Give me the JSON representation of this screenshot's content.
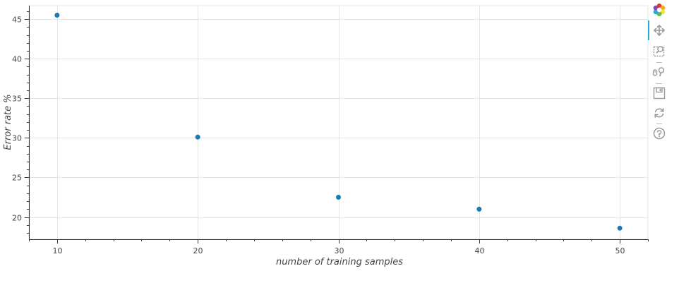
{
  "chart_data": {
    "type": "scatter",
    "title": "",
    "xlabel": "number of training samples",
    "ylabel": "Error rate %",
    "xlim": [
      8,
      52
    ],
    "ylim": [
      17.2,
      46.7
    ],
    "xticks": [
      10,
      20,
      30,
      40,
      50
    ],
    "yticks": [
      20,
      25,
      30,
      35,
      40,
      45
    ],
    "grid": true,
    "points_color": "#1f77b4",
    "x": [
      10,
      20,
      30,
      40,
      50
    ],
    "y": [
      45.5,
      30.1,
      22.5,
      21.0,
      18.6
    ]
  },
  "toolbar": {
    "tools": [
      {
        "name": "bokeh-logo-icon"
      },
      {
        "name": "pan-icon",
        "active": true
      },
      {
        "name": "box-zoom-icon"
      },
      {
        "name": "wheel-zoom-icon"
      },
      {
        "name": "save-icon"
      },
      {
        "name": "reset-icon"
      },
      {
        "name": "help-icon"
      }
    ],
    "accent": "#26aae1",
    "icon_color": "#9a9a9a"
  }
}
